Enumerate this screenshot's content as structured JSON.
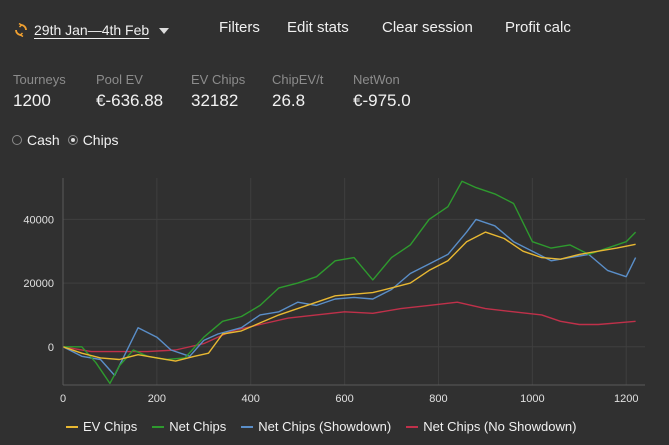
{
  "header": {
    "date_range": "29th Jan—4th Feb",
    "menu": [
      "Filters",
      "Edit stats",
      "Clear session",
      "Profit calc"
    ]
  },
  "stats": [
    {
      "key": "Tourneys",
      "value": "1200"
    },
    {
      "key": "Pool EV",
      "value": "€-636.88"
    },
    {
      "key": "EV Chips",
      "value": "32182"
    },
    {
      "key": "ChipEV/t",
      "value": "26.8"
    },
    {
      "key": "NetWon",
      "value": "€-975.0"
    }
  ],
  "mode": {
    "options": [
      "Cash",
      "Chips"
    ],
    "selected": "Chips"
  },
  "colors": {
    "accent": "#f0a030",
    "ev_chips": "#e8b832",
    "net_chips": "#2e9a2e",
    "showdown": "#5a8ec8",
    "no_showdown": "#c0304a"
  },
  "chart_data": {
    "type": "line",
    "xlim": [
      0,
      1240
    ],
    "ylim": [
      -12000,
      53000
    ],
    "xticks": [
      0,
      200,
      400,
      600,
      800,
      1000,
      1200
    ],
    "yticks": [
      0,
      20000,
      40000
    ],
    "grid": true,
    "legend_position": "bottom",
    "series": [
      {
        "name": "EV Chips",
        "color": "#e8b832",
        "points": [
          [
            0,
            0
          ],
          [
            40,
            -2000
          ],
          [
            80,
            -3500
          ],
          [
            120,
            -4000
          ],
          [
            160,
            -2500
          ],
          [
            200,
            -3500
          ],
          [
            240,
            -4500
          ],
          [
            280,
            -3000
          ],
          [
            310,
            -2000
          ],
          [
            340,
            4000
          ],
          [
            380,
            5000
          ],
          [
            420,
            7500
          ],
          [
            460,
            10000
          ],
          [
            500,
            12000
          ],
          [
            540,
            14000
          ],
          [
            580,
            16000
          ],
          [
            620,
            16500
          ],
          [
            660,
            17000
          ],
          [
            700,
            18500
          ],
          [
            740,
            20000
          ],
          [
            780,
            24000
          ],
          [
            820,
            27000
          ],
          [
            860,
            33000
          ],
          [
            900,
            36000
          ],
          [
            940,
            34000
          ],
          [
            980,
            30000
          ],
          [
            1020,
            28000
          ],
          [
            1060,
            27500
          ],
          [
            1100,
            29000
          ],
          [
            1140,
            30000
          ],
          [
            1180,
            31000
          ],
          [
            1220,
            32182
          ]
        ]
      },
      {
        "name": "Net Chips",
        "color": "#2e9a2e",
        "points": [
          [
            0,
            0
          ],
          [
            40,
            0
          ],
          [
            70,
            -5000
          ],
          [
            100,
            -11500
          ],
          [
            120,
            -6000
          ],
          [
            150,
            -1000
          ],
          [
            180,
            -3000
          ],
          [
            220,
            -4000
          ],
          [
            260,
            -3500
          ],
          [
            300,
            3000
          ],
          [
            340,
            8000
          ],
          [
            380,
            9500
          ],
          [
            420,
            13000
          ],
          [
            460,
            18500
          ],
          [
            500,
            20000
          ],
          [
            540,
            22000
          ],
          [
            580,
            27000
          ],
          [
            620,
            28000
          ],
          [
            660,
            21000
          ],
          [
            700,
            28000
          ],
          [
            740,
            32000
          ],
          [
            780,
            40000
          ],
          [
            820,
            44000
          ],
          [
            850,
            52000
          ],
          [
            880,
            50000
          ],
          [
            920,
            48000
          ],
          [
            960,
            45000
          ],
          [
            1000,
            33000
          ],
          [
            1040,
            31000
          ],
          [
            1080,
            32000
          ],
          [
            1120,
            29000
          ],
          [
            1160,
            31000
          ],
          [
            1200,
            33000
          ],
          [
            1220,
            36000
          ]
        ]
      },
      {
        "name": "Net Chips (Showdown)",
        "color": "#5a8ec8",
        "points": [
          [
            0,
            0
          ],
          [
            40,
            -3000
          ],
          [
            80,
            -4000
          ],
          [
            110,
            -9000
          ],
          [
            130,
            -3000
          ],
          [
            160,
            6000
          ],
          [
            200,
            3000
          ],
          [
            230,
            -1000
          ],
          [
            270,
            -3000
          ],
          [
            300,
            2000
          ],
          [
            330,
            4000
          ],
          [
            380,
            6000
          ],
          [
            420,
            10000
          ],
          [
            460,
            11000
          ],
          [
            500,
            14000
          ],
          [
            540,
            13000
          ],
          [
            580,
            15000
          ],
          [
            620,
            15500
          ],
          [
            660,
            15000
          ],
          [
            700,
            18000
          ],
          [
            740,
            23000
          ],
          [
            780,
            26000
          ],
          [
            820,
            29000
          ],
          [
            860,
            36000
          ],
          [
            880,
            40000
          ],
          [
            920,
            38000
          ],
          [
            960,
            33000
          ],
          [
            1000,
            30000
          ],
          [
            1040,
            27000
          ],
          [
            1080,
            28000
          ],
          [
            1120,
            29000
          ],
          [
            1160,
            24000
          ],
          [
            1200,
            22000
          ],
          [
            1220,
            28000
          ]
        ]
      },
      {
        "name": "Net Chips (No Showdown)",
        "color": "#c0304a",
        "points": [
          [
            0,
            0
          ],
          [
            60,
            -1500
          ],
          [
            120,
            -1500
          ],
          [
            180,
            -1500
          ],
          [
            240,
            -1000
          ],
          [
            300,
            1000
          ],
          [
            360,
            5000
          ],
          [
            420,
            7000
          ],
          [
            480,
            9000
          ],
          [
            540,
            10000
          ],
          [
            600,
            11000
          ],
          [
            660,
            10500
          ],
          [
            720,
            12000
          ],
          [
            780,
            13000
          ],
          [
            840,
            14000
          ],
          [
            900,
            12000
          ],
          [
            960,
            11000
          ],
          [
            1020,
            10000
          ],
          [
            1060,
            8000
          ],
          [
            1100,
            7000
          ],
          [
            1140,
            7000
          ],
          [
            1180,
            7500
          ],
          [
            1220,
            8000
          ]
        ]
      }
    ]
  }
}
